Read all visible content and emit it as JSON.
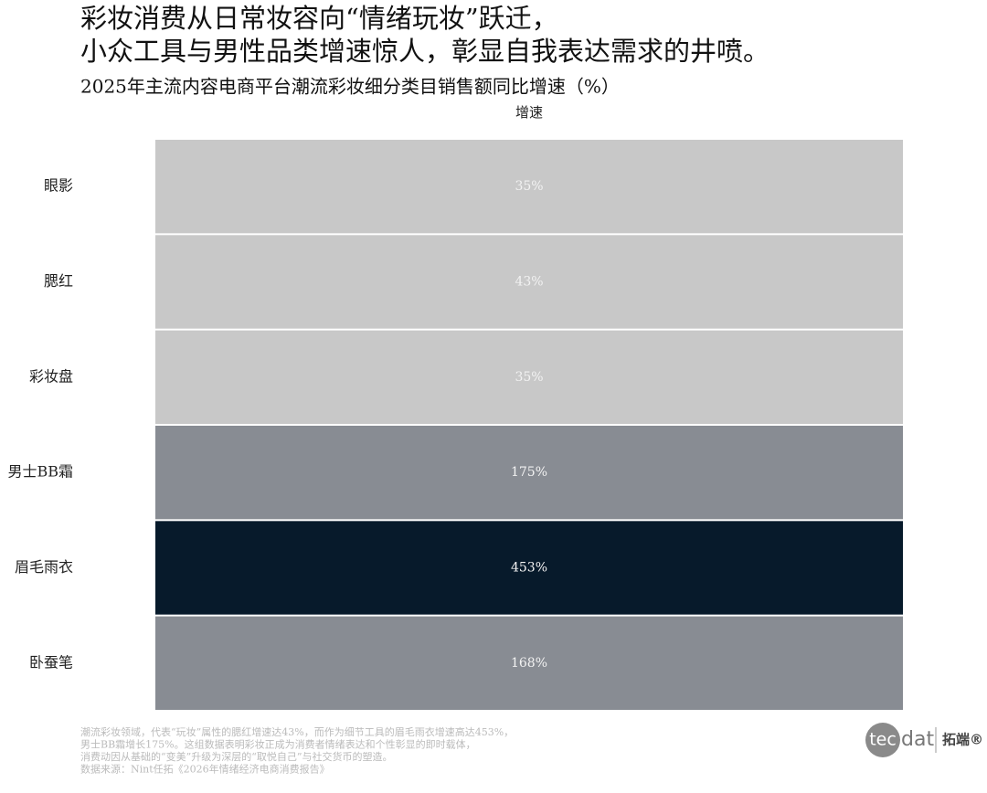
{
  "chart_data": {
    "type": "heatmap",
    "title_lines": [
      "彩妆消费从日常妆容向“情绪玩妆”跃迁，",
      "小众工具与男性品类增速惊人，彰显自我表达需求的井喷。"
    ],
    "subtitle": "2025年主流内容电商平台潮流彩妆细分类目销售额同比增速（%）",
    "x_categories": [
      "增速"
    ],
    "categories": [
      "眼影",
      "腮红",
      "彩妆盘",
      "男士BB霜",
      "眉毛雨衣",
      "卧蚕笔"
    ],
    "values": [
      35,
      43,
      35,
      175,
      453,
      168
    ],
    "value_labels": [
      "35%",
      "43%",
      "35%",
      "175%",
      "453%",
      "168%"
    ],
    "colors": [
      "#c8c8c8",
      "#c8c8c8",
      "#c8c8c8",
      "#888c93",
      "#071a2b",
      "#888c93"
    ],
    "notes": [
      "潮流彩妆领域，代表“玩妆”属性的腮红增速达43%，而作为细节工具的眉毛雨衣增速高达453%，",
      "男士BB霜增长175%。这组数据表明彩妆正成为消费者情绪表达和个性彰显的即时载体，",
      "消费动因从基础的“变美”升级为深层的“取悦自己”与社交货币的塑造。",
      "数据来源：Nint任拓《2026年情绪经济电商消费报告》"
    ]
  },
  "logo": {
    "mark": "tec",
    "text": "dat",
    "brand": "拓端®"
  }
}
